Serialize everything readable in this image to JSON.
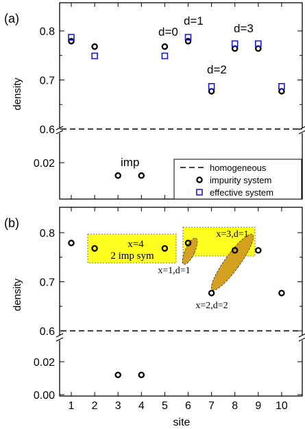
{
  "chart_data": [
    {
      "panel": "(a)",
      "type": "scatter",
      "xlabel": "",
      "ylabel": "density",
      "x": [
        1,
        2,
        3,
        4,
        5,
        6,
        7,
        8,
        9,
        10
      ],
      "broken_y_axis": true,
      "ylim_upper": [
        0.58,
        0.85
      ],
      "ylim_lower": [
        0.0,
        0.03
      ],
      "upper_ticks": [
        "0.6",
        "0.7",
        "0.8"
      ],
      "lower_ticks": [
        "0.02"
      ],
      "grid": false,
      "legend_position": "lower-right",
      "series": [
        {
          "name": "homogeneous",
          "style": "dashed-line",
          "color": "#000000",
          "value": 0.6
        },
        {
          "name": "impurity system",
          "style": "circle",
          "color": "#000000",
          "values": [
            0.779,
            0.768,
            0.012,
            0.012,
            0.768,
            0.779,
            0.677,
            0.764,
            0.764,
            0.677
          ]
        },
        {
          "name": "effective system",
          "style": "square",
          "color": "#1a1acc",
          "x": [
            1,
            2,
            5,
            6,
            7,
            8,
            9,
            10
          ],
          "values": [
            0.787,
            0.749,
            0.749,
            0.787,
            0.687,
            0.774,
            0.774,
            0.687
          ]
        }
      ],
      "annotations": [
        "d=0",
        "d=1",
        "d=2",
        "d=3",
        "imp"
      ]
    },
    {
      "panel": "(b)",
      "type": "scatter",
      "xlabel": "site",
      "ylabel": "density",
      "x": [
        1,
        2,
        3,
        4,
        5,
        6,
        7,
        8,
        9,
        10
      ],
      "xticks": [
        "1",
        "2",
        "3",
        "4",
        "5",
        "6",
        "7",
        "8",
        "9",
        "10"
      ],
      "broken_y_axis": true,
      "ylim_upper": [
        0.58,
        0.85
      ],
      "ylim_lower": [
        0.0,
        0.03
      ],
      "upper_ticks": [
        "0.6",
        "0.7",
        "0.8"
      ],
      "lower_ticks": [
        "0.00",
        "0.02"
      ],
      "grid": false,
      "series": [
        {
          "name": "homogeneous",
          "style": "dashed-line",
          "color": "#000000",
          "value": 0.6
        },
        {
          "name": "impurity system",
          "style": "circle",
          "color": "#000000",
          "values": [
            0.779,
            0.768,
            0.012,
            0.012,
            0.768,
            0.779,
            0.677,
            0.764,
            0.764,
            0.677
          ]
        }
      ],
      "annotations": [
        "x=4",
        "2 imp sym",
        "x=3,d=1",
        "x=1,d=1",
        "x=2,d=2"
      ],
      "highlight_color": "#ffff22",
      "ellipse_color": "#d4a020"
    }
  ]
}
